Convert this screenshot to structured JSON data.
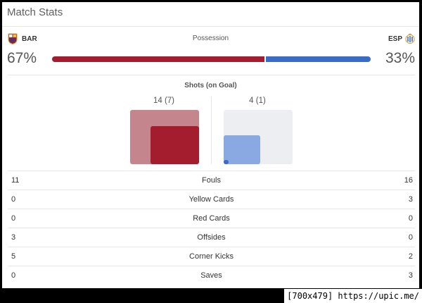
{
  "header": {
    "title": "Match Stats"
  },
  "teams": {
    "home": {
      "abbr": "BAR",
      "crest_icon": "barcelona-crest-icon",
      "color": "#a31d2f",
      "light_color": "#c4868c"
    },
    "away": {
      "abbr": "ESP",
      "crest_icon": "espanyol-crest-icon",
      "color": "#3a6bc6",
      "light_color": "#eceef1",
      "ontarget_color": "#8aa9e2"
    }
  },
  "possession": {
    "label": "Possession",
    "home_pct": 67,
    "home_text": "67%",
    "away_text": "33%"
  },
  "shots": {
    "label": "Shots (on Goal)",
    "home_text": "14 (7)",
    "away_text": "4 (1)",
    "home_total": 14,
    "home_on_goal": 7,
    "away_total": 4,
    "away_on_goal": 1
  },
  "stats": [
    {
      "label": "Fouls",
      "home": "11",
      "away": "16"
    },
    {
      "label": "Yellow Cards",
      "home": "0",
      "away": "3"
    },
    {
      "label": "Red Cards",
      "home": "0",
      "away": "0"
    },
    {
      "label": "Offsides",
      "home": "3",
      "away": "0"
    },
    {
      "label": "Corner Kicks",
      "home": "5",
      "away": "2"
    },
    {
      "label": "Saves",
      "home": "0",
      "away": "3"
    }
  ],
  "watermark": "[700x479] https://upic.me/"
}
